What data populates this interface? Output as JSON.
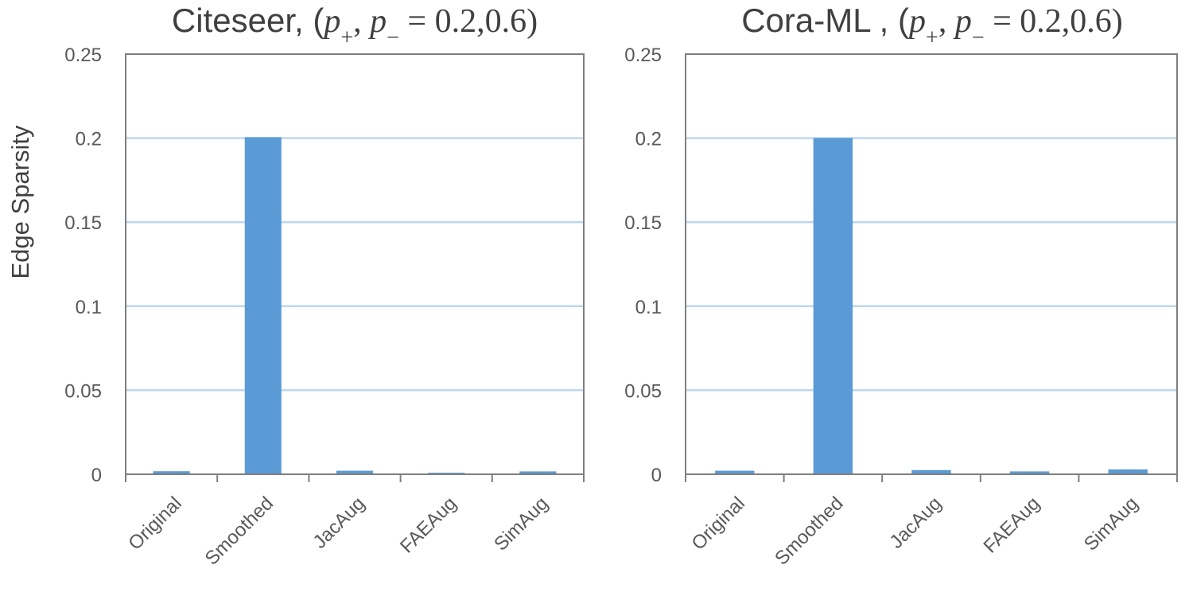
{
  "chart_data": [
    {
      "type": "bar",
      "title": {
        "prefix": "Citeseer, (",
        "p": "p",
        "sub_plus": "+",
        "sep": ", ",
        "sub_minus": "−",
        "eq": " = 0.2,0.6)"
      },
      "xlabel": "",
      "ylabel": "Edge Sparsity",
      "ylim": [
        0,
        0.25
      ],
      "yticks": [
        "0",
        "0.05",
        "0.1",
        "0.15",
        "0.2",
        "0.25"
      ],
      "ytick_values": [
        0,
        0.05,
        0.1,
        0.15,
        0.2,
        0.25
      ],
      "grid": true,
      "categories": [
        "Original",
        "Smoothed",
        "JacAug",
        "FAEAug",
        "SimAug"
      ],
      "values": [
        0.0018,
        0.2006,
        0.0021,
        0.0009,
        0.0017
      ],
      "bar_color": "#5b9bd5",
      "grid_color": "#bdd7ee",
      "axis_color": "#7f7f7f"
    },
    {
      "type": "bar",
      "title": {
        "prefix": "Cora-ML , (",
        "p": "p",
        "sub_plus": "+",
        "sep": ", ",
        "sub_minus": "−",
        "eq": " = 0.2,0.6)"
      },
      "xlabel": "",
      "ylabel": "",
      "ylim": [
        0,
        0.25
      ],
      "yticks": [
        "0",
        "0.05",
        "0.1",
        "0.15",
        "0.2",
        "0.25"
      ],
      "ytick_values": [
        0,
        0.05,
        0.1,
        0.15,
        0.2,
        0.25
      ],
      "grid": true,
      "categories": [
        "Original",
        "Smoothed",
        "JacAug",
        "FAEAug",
        "SimAug"
      ],
      "values": [
        0.0021,
        0.2001,
        0.0025,
        0.0017,
        0.0029
      ],
      "bar_color": "#5b9bd5",
      "grid_color": "#bdd7ee",
      "axis_color": "#7f7f7f"
    }
  ]
}
